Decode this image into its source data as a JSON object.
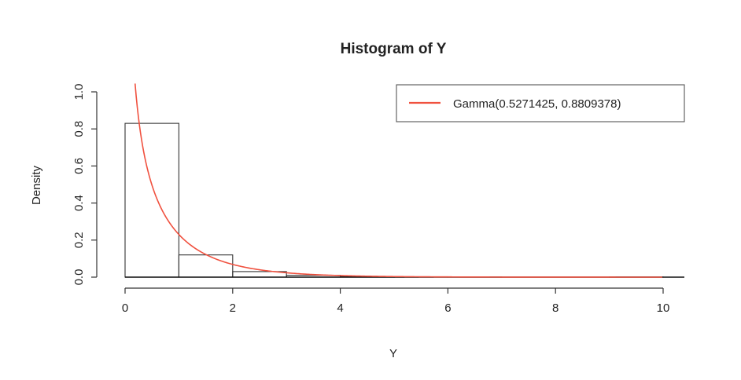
{
  "chart_data": {
    "type": "bar",
    "title": "Histogram of Y",
    "xlabel": "Y",
    "ylabel": "Density",
    "xlim": [
      0,
      10
    ],
    "ylim": [
      0,
      1.0
    ],
    "x_ticks": [
      0,
      2,
      4,
      6,
      8,
      10
    ],
    "x_tick_labels": [
      "0",
      "2",
      "4",
      "6",
      "8",
      "10"
    ],
    "y_ticks": [
      0,
      0.2,
      0.4,
      0.6,
      0.8,
      1.0
    ],
    "y_tick_labels": [
      "0.0",
      "0.2",
      "0.4",
      "0.6",
      "0.8",
      "1.0"
    ],
    "bins": [
      {
        "x0": 0,
        "x1": 1,
        "density": 0.83
      },
      {
        "x0": 1,
        "x1": 2,
        "density": 0.12
      },
      {
        "x0": 2,
        "x1": 3,
        "density": 0.03
      },
      {
        "x0": 3,
        "x1": 4,
        "density": 0.01
      },
      {
        "x0": 4,
        "x1": 5,
        "density": 0.004
      },
      {
        "x0": 5,
        "x1": 6,
        "density": 0.002
      },
      {
        "x0": 6,
        "x1": 7,
        "density": 0.001
      },
      {
        "x0": 7,
        "x1": 8,
        "density": 0.0
      },
      {
        "x0": 8,
        "x1": 9,
        "density": 0.0
      },
      {
        "x0": 9,
        "x1": 10,
        "density": 0.001
      }
    ],
    "curve": {
      "name": "Gamma(0.5271425, 0.8809378)",
      "distribution": "gamma",
      "shape": 0.5271425,
      "rate": 0.8809378,
      "color": "#f0513f"
    },
    "legend": {
      "position": "top-right",
      "label": "Gamma(0.5271425, 0.8809378)"
    },
    "grid": false
  }
}
